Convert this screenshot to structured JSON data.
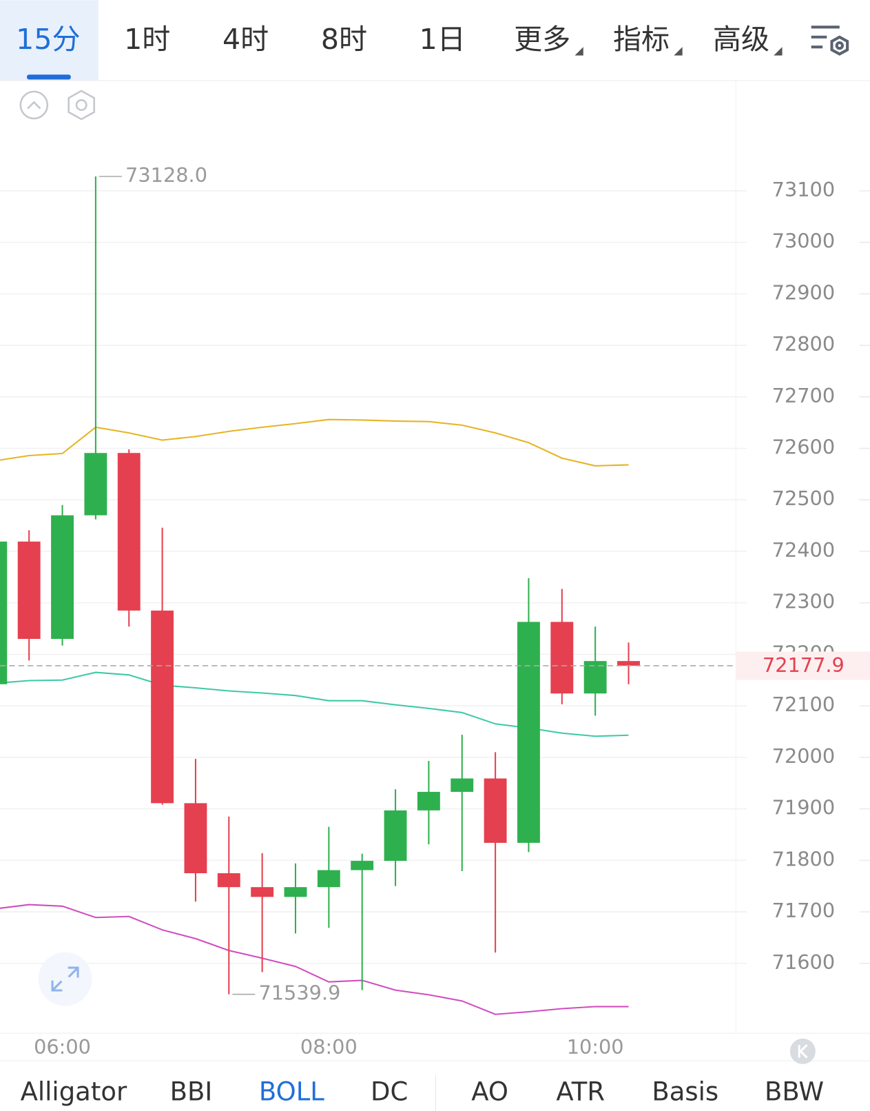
{
  "tabs": {
    "items": [
      "15分",
      "1时",
      "4时",
      "8时",
      "1日",
      "更多",
      "指标",
      "高级"
    ],
    "active": 0
  },
  "indicators": {
    "items": [
      "Alligator",
      "BBI",
      "BOLL",
      "DC",
      "AO",
      "ATR",
      "Basis",
      "BBW"
    ],
    "active": 2
  },
  "chart_data": {
    "type": "candlestick",
    "categories": [
      null,
      null,
      "06:00",
      null,
      null,
      null,
      null,
      null,
      null,
      null,
      "08:00",
      null,
      null,
      null,
      null,
      null,
      null,
      null,
      "10:00",
      null
    ],
    "open": [
      72142,
      72419,
      72230,
      72470,
      72591,
      72285,
      71911,
      71775,
      71748,
      71729,
      71748,
      71781,
      71799,
      71897,
      71933,
      71959,
      71834,
      72263,
      72124,
      72187
    ],
    "high": [
      72430,
      72441,
      72490,
      73128,
      72598,
      72446,
      71997,
      71885,
      71814,
      71794,
      71865,
      71813,
      71938,
      71993,
      72044,
      72010,
      72348,
      72327,
      72254,
      72223
    ],
    "low": [
      72130,
      72188,
      72217,
      72462,
      72254,
      71908,
      71720,
      71539.9,
      71583,
      71658,
      71669,
      71548,
      71750,
      71831,
      71779,
      71621,
      71816,
      72103,
      72081,
      72142
    ],
    "close": [
      72419,
      72230,
      72470,
      72591,
      72285,
      71911,
      71775,
      71748,
      71729,
      71748,
      71781,
      71799,
      71897,
      71933,
      71959,
      71834,
      72263,
      72124,
      72187,
      72177.9
    ],
    "up_color": "#2fb04f",
    "down_color": "#e5404f",
    "overlays": [
      {
        "color": "#e6b422",
        "values": [
          72576,
          72586,
          72590,
          72641,
          72630,
          72616,
          72623,
          72633,
          72641,
          72648,
          72656,
          72655,
          72653,
          72652,
          72645,
          72630,
          72611,
          72581,
          72566,
          72568
        ]
      },
      {
        "color": "#3cc9a8",
        "values": [
          72144,
          72149,
          72150,
          72165,
          72160,
          72140,
          72135,
          72129,
          72125,
          72120,
          72110,
          72110,
          72102,
          72095,
          72087,
          72065,
          72057,
          72047,
          72041,
          72043
        ]
      },
      {
        "color": "#d04cc0",
        "values": [
          71706,
          71714,
          71711,
          71689,
          71691,
          71665,
          71648,
          71625,
          71610,
          71594,
          71564,
          71567,
          71548,
          71539,
          71527,
          71501,
          71506,
          71512,
          71516,
          71516
        ]
      }
    ],
    "ylim": [
      71465,
      73312
    ],
    "yticks": [
      71600,
      71700,
      71800,
      71900,
      72000,
      72100,
      72200,
      72300,
      72400,
      72500,
      72600,
      72700,
      72800,
      72900,
      73000,
      73100
    ],
    "grid": true,
    "current_price": 72177.9,
    "annotations": [
      {
        "value": 73128,
        "label": "73128.0",
        "index": 3
      },
      {
        "value": 71539.9,
        "label": "71539.9",
        "index": 7
      }
    ]
  }
}
